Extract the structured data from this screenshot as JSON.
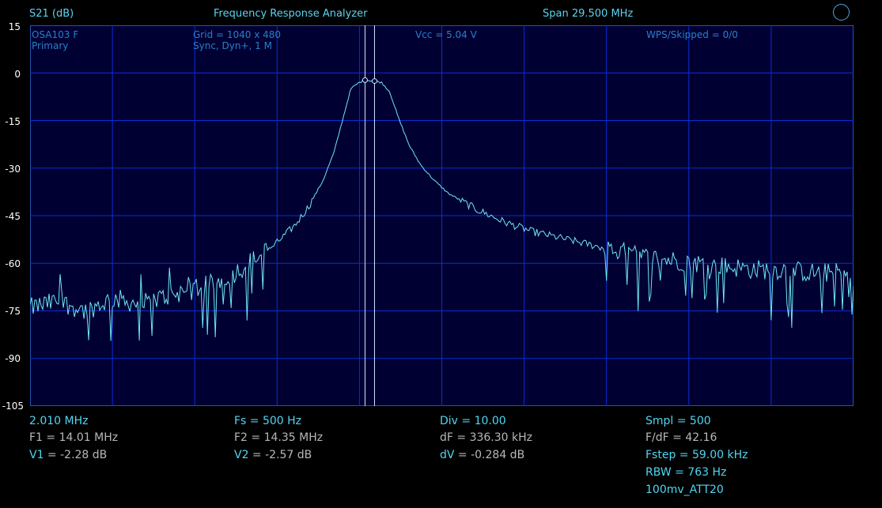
{
  "header": {
    "measure": "S21 (dB)",
    "title": "Frequency Response Analyzer",
    "span": "Span 29.500 MHz"
  },
  "plot": {
    "device": "OSA103 F",
    "mode": "Primary",
    "grid": "Grid = 1040 x 480",
    "sync": "Sync,  Dyn+, 1 M",
    "vcc": "Vcc = 5.04 V",
    "wps": "WPS/Skipped  = 0/0"
  },
  "y_ticks": [
    "15",
    "0",
    "-15",
    "-30",
    "-45",
    "-60",
    "-75",
    "-90",
    "-105"
  ],
  "readout": {
    "col1": {
      "start_freq": "2.010 MHz",
      "f1": "F1 = 14.01 MHz",
      "v1_label": "V1",
      "v1_value": " = -2.28 dB"
    },
    "col2": {
      "fs": "Fs = 500 Hz",
      "f2": "F2 = 14.35 MHz",
      "v2_label": "V2",
      "v2_value": " = -2.57 dB"
    },
    "col3": {
      "div": "Div = 10.00",
      "df": "dF = 336.30 kHz",
      "dv_label": "dV",
      "dv_value": " = -0.284 dB"
    },
    "col4": {
      "smpl": "Smpl = 500",
      "fdf": "F/dF = 42.16",
      "fstep": "Fstep = 59.00 kHz",
      "rbw": "RBW = 763 Hz",
      "preset": "100mv_ATT20"
    }
  },
  "colors": {
    "trace": "#6fe6f5",
    "grid": "#0a2fd4",
    "plot_bg": "#000033",
    "border": "#2a6fd8",
    "cursor": "#cfe8ff"
  },
  "chart_data": {
    "type": "line",
    "ylabel": "S21 (dB)",
    "ylim": [
      -105,
      15
    ],
    "xlim_mhz": [
      2.01,
      31.51
    ],
    "grid": true,
    "cursors_mhz": [
      14.01,
      14.35
    ],
    "cursor_values_db": [
      -2.28,
      -2.57
    ],
    "series": [
      {
        "x_mhz": [
          2.01,
          3.0,
          4.0,
          5.0,
          6.0,
          7.0,
          8.0,
          9.0,
          10.0,
          10.8,
          11.5,
          12.0,
          12.5,
          12.9,
          13.2,
          13.5,
          13.8,
          14.0,
          14.2,
          14.4,
          14.6,
          14.9,
          15.2,
          15.6,
          16.0,
          16.5,
          17.0,
          18.0,
          19.0,
          20.0,
          21.0,
          22.0,
          23.0,
          24.0,
          25.0,
          26.0,
          27.0,
          28.0,
          29.0,
          30.0,
          31.0,
          31.51
        ],
        "y_db": [
          -74,
          -72,
          -75,
          -71,
          -73,
          -70,
          -68,
          -65,
          -59,
          -54,
          -48,
          -42,
          -34,
          -25,
          -15,
          -5,
          -3,
          -2.3,
          -2.4,
          -2.6,
          -3,
          -6,
          -14,
          -23,
          -29,
          -34,
          -38,
          -43,
          -47,
          -50,
          -52,
          -54,
          -56,
          -58,
          -59,
          -60,
          -61,
          -62,
          -62,
          -63,
          -63,
          -64
        ]
      }
    ]
  }
}
